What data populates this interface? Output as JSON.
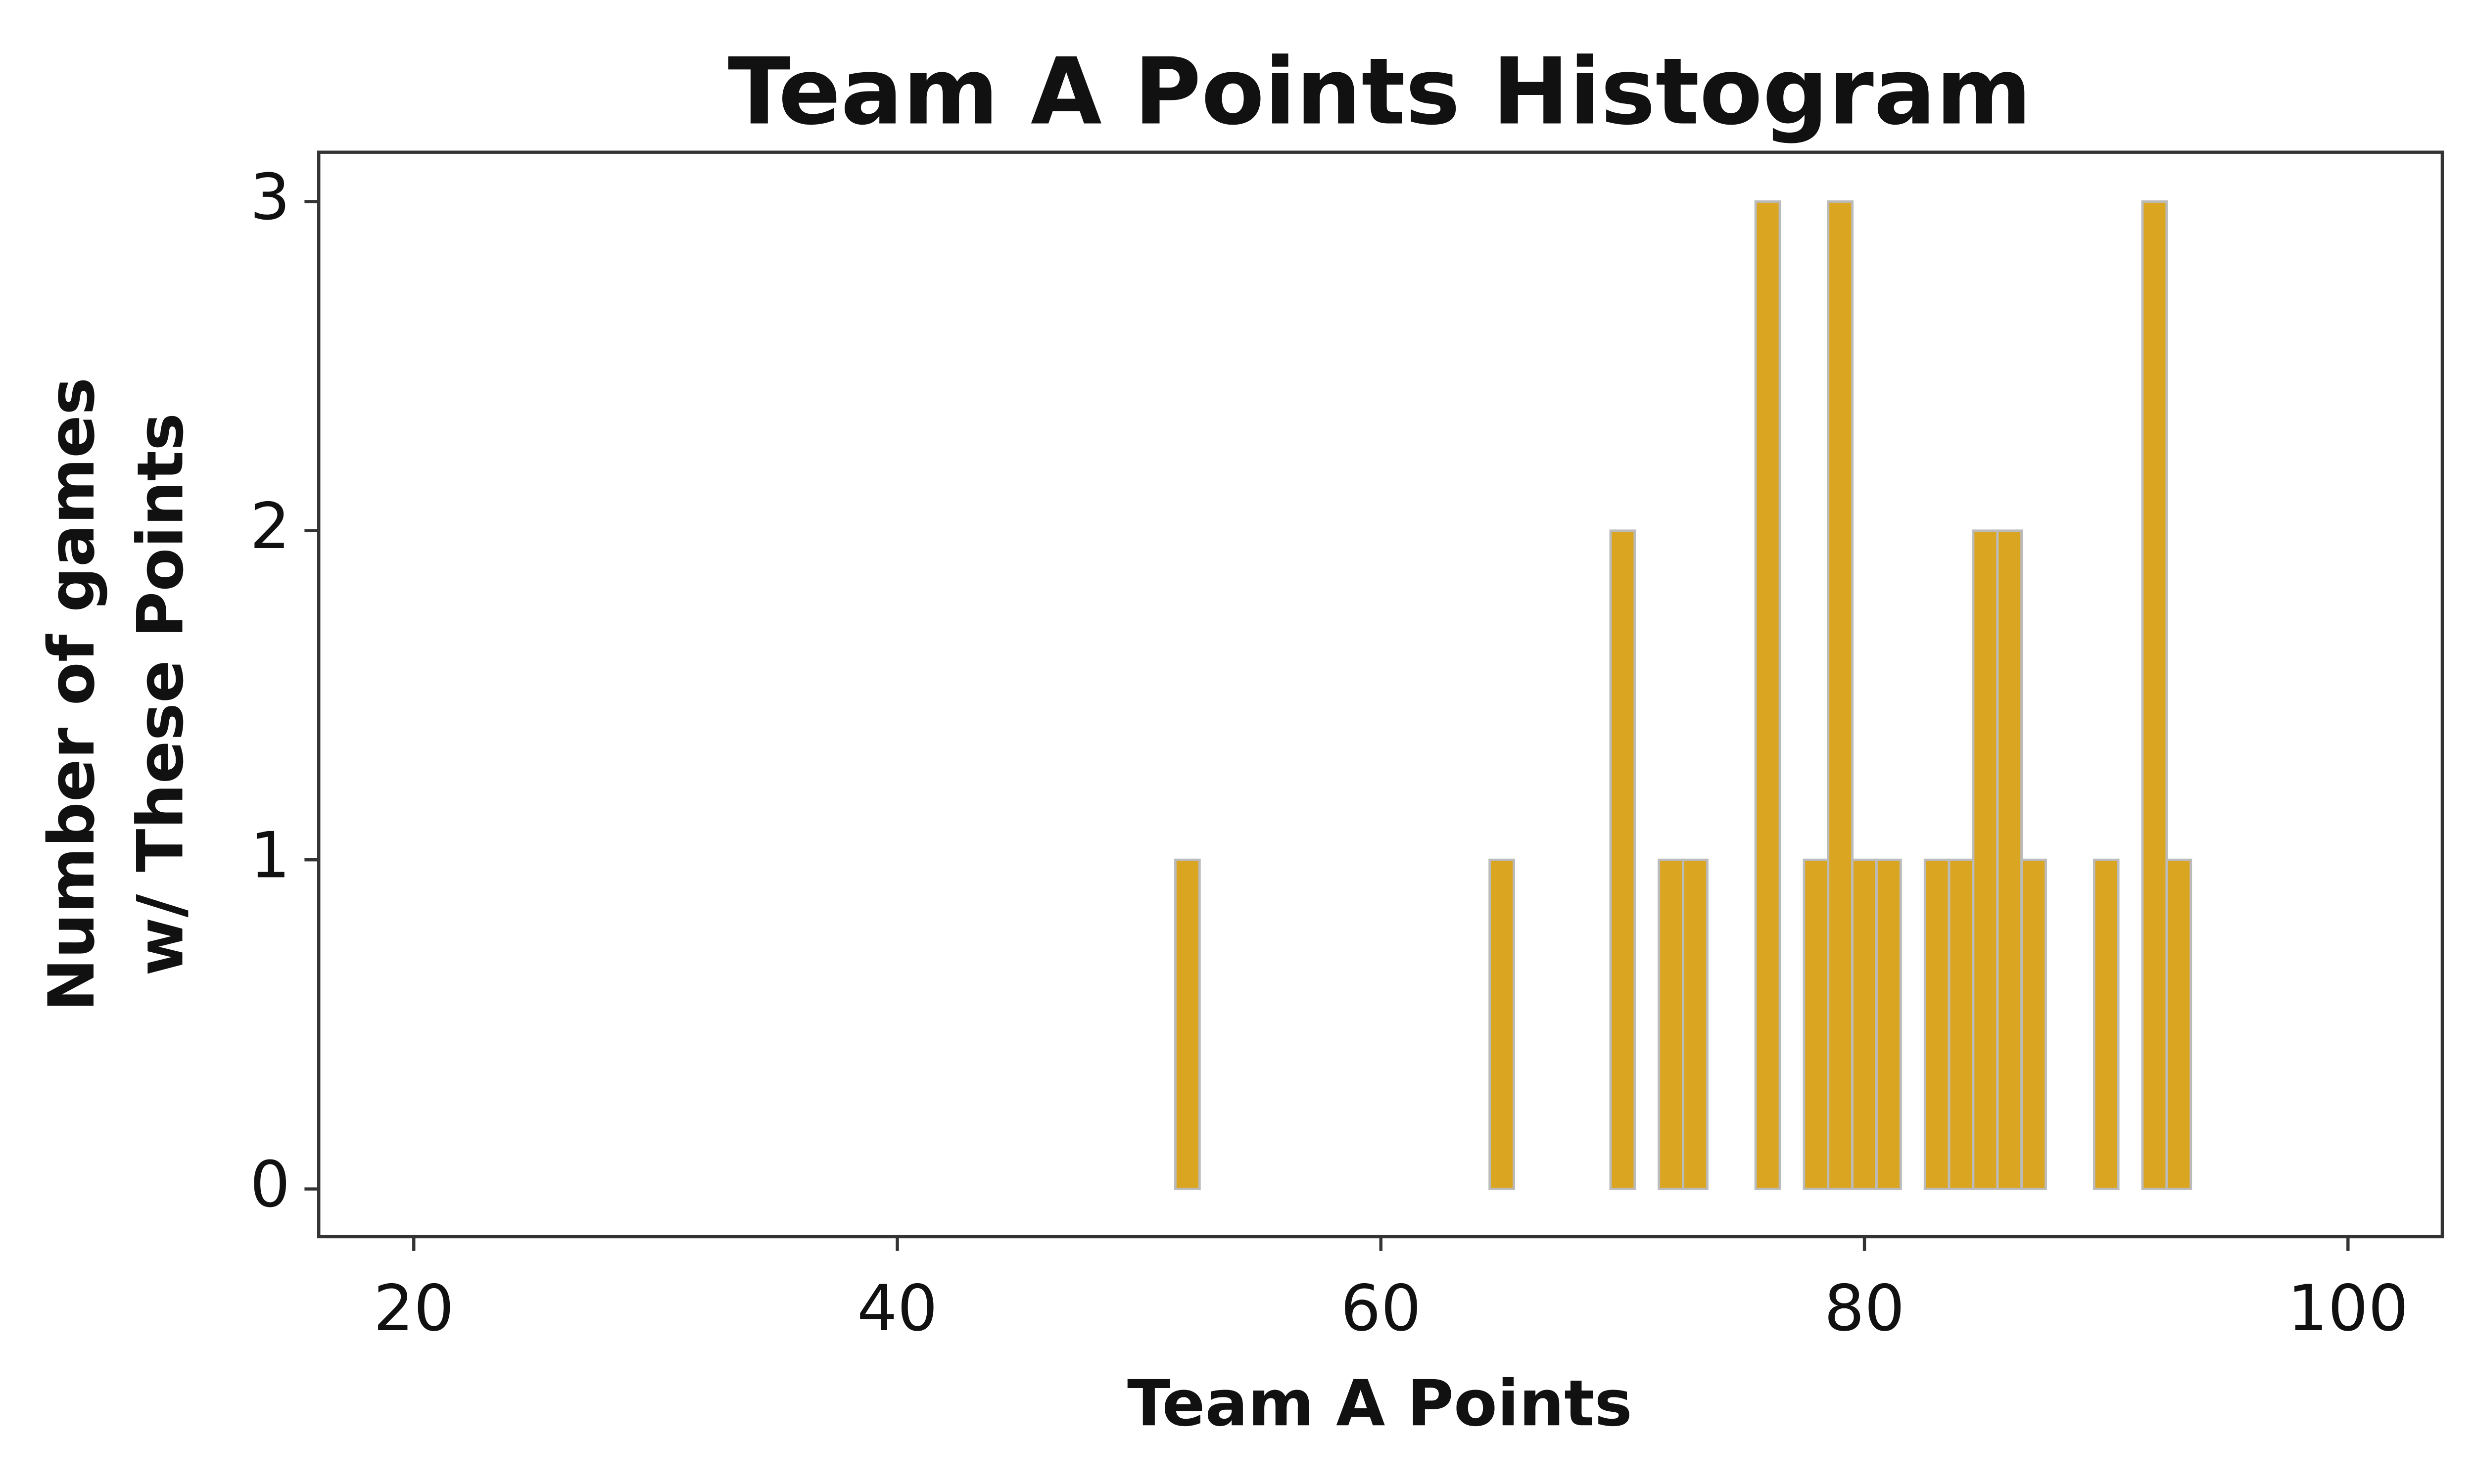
{
  "chart_data": {
    "type": "histogram",
    "title": "Team A Points Histogram",
    "xlabel": "Team A Points",
    "ylabel": [
      "Number of games",
      "w/ These Points"
    ],
    "bins": [
      20.5,
      21.5,
      22.5,
      23.5,
      24.5,
      25.5,
      26.5,
      27.5,
      28.5,
      29.5,
      30.5,
      31.5,
      32.5,
      33.5,
      34.5,
      35.5,
      36.5,
      37.5,
      38.5,
      39.5,
      40.5,
      41.5,
      42.5,
      43.5,
      44.5,
      45.5,
      46.5,
      47.5,
      48.5,
      49.5,
      50.5,
      51.5,
      52.5,
      53.5,
      54.5,
      55.5,
      56.5,
      57.5,
      58.5,
      59.5,
      60.5,
      61.5,
      62.5,
      63.5,
      64.5,
      65.5,
      66.5,
      67.5,
      68.5,
      69.5,
      70.5,
      71.5,
      72.5,
      73.5,
      74.5,
      75.5,
      76.5,
      77.5,
      78.5,
      79.5,
      80.5,
      81.5,
      82.5,
      83.5,
      84.5,
      85.5,
      86.5,
      87.5,
      88.5,
      89.5,
      90.5,
      91.5,
      92.5,
      93.5,
      94.5,
      95.5,
      96.5,
      97.5,
      98.5,
      99.5
    ],
    "values": [
      0,
      0,
      0,
      0,
      0,
      0,
      0,
      0,
      0,
      0,
      0,
      0,
      0,
      0,
      0,
      0,
      0,
      0,
      0,
      0,
      0,
      0,
      0,
      0,
      0,
      0,
      0,
      0,
      0,
      0,
      0,
      1,
      0,
      0,
      0,
      0,
      0,
      0,
      0,
      0,
      0,
      0,
      0,
      0,
      1,
      0,
      0,
      0,
      0,
      2,
      0,
      1,
      1,
      0,
      0,
      3,
      0,
      1,
      3,
      1,
      1,
      0,
      1,
      1,
      2,
      2,
      1,
      0,
      0,
      1,
      0,
      3,
      1,
      0,
      0,
      0,
      0,
      0,
      0
    ],
    "color": "#daa520",
    "edgecolor": "#bbbbbb",
    "xlim": [
      16.07,
      103.9
    ],
    "xticks": [
      20,
      40,
      60,
      80,
      100
    ],
    "ylim": [
      -0.145,
      3.15
    ],
    "yticks": [
      0,
      1,
      2,
      3
    ]
  }
}
